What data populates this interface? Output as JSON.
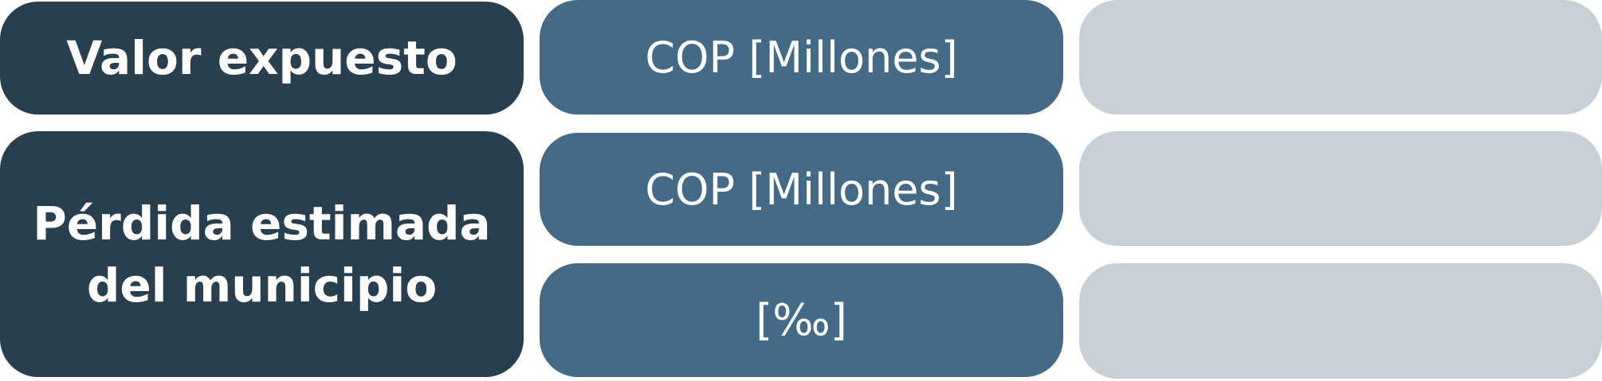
{
  "rows": {
    "exposed_value": {
      "label": "Valor expuesto",
      "unit": "COP [Millones]",
      "value": ""
    },
    "estimated_loss": {
      "label": "Pérdida estimada\ndel municipio",
      "unit_cop": "COP [Millones]",
      "value_cop": "",
      "unit_permille": "[‰]",
      "value_permille": ""
    }
  },
  "colors": {
    "label_bg": "#283f4f",
    "unit_bg": "#456a86",
    "value_bg": "#c8d0d6",
    "text": "#ffffff"
  }
}
